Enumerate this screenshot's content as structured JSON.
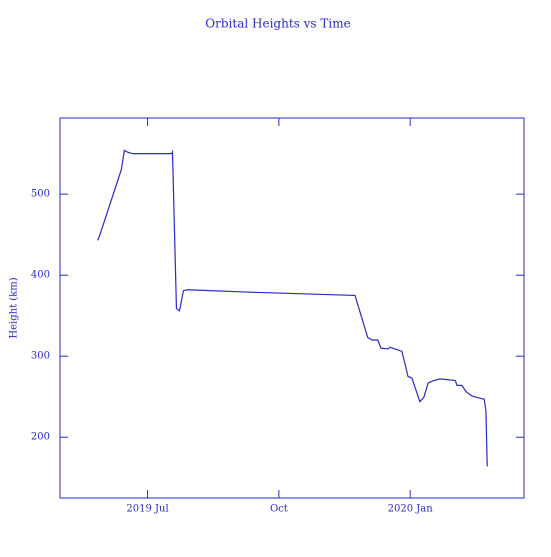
{
  "chart_data": {
    "type": "line",
    "title": "Orbital Heights vs Time",
    "ylabel": "Height (km)",
    "color": "#2a2ac8",
    "x": [
      5.86,
      5.9,
      6.4,
      6.47,
      6.54,
      6.66,
      7.55,
      7.57,
      7.66,
      7.73,
      7.82,
      7.92,
      9.33,
      11.74,
      12.03,
      12.13,
      12.26,
      12.33,
      12.49,
      12.54,
      12.81,
      12.88,
      12.95,
      13.04,
      13.22,
      13.31,
      13.41,
      13.54,
      13.68,
      14.03,
      14.07,
      14.18,
      14.28,
      14.41,
      14.6,
      14.69,
      14.73,
      14.76
    ],
    "values": [
      443,
      448,
      530,
      554,
      552,
      550,
      550,
      552,
      359,
      356,
      381,
      382,
      379,
      375,
      323,
      320,
      320,
      310,
      309,
      311,
      306,
      291,
      275,
      273,
      244,
      249,
      267,
      270,
      272,
      270,
      264,
      264,
      256,
      251,
      248,
      247,
      233,
      164
    ],
    "xlim": [
      5,
      15.6
    ],
    "xticks": [
      {
        "value": 7,
        "label": "2019 Jul"
      },
      {
        "value": 10,
        "label": "Oct"
      },
      {
        "value": 13,
        "label": "2020 Jan"
      }
    ],
    "ylim": [
      125,
      594
    ],
    "yticks": [
      200,
      300,
      400,
      500
    ]
  }
}
